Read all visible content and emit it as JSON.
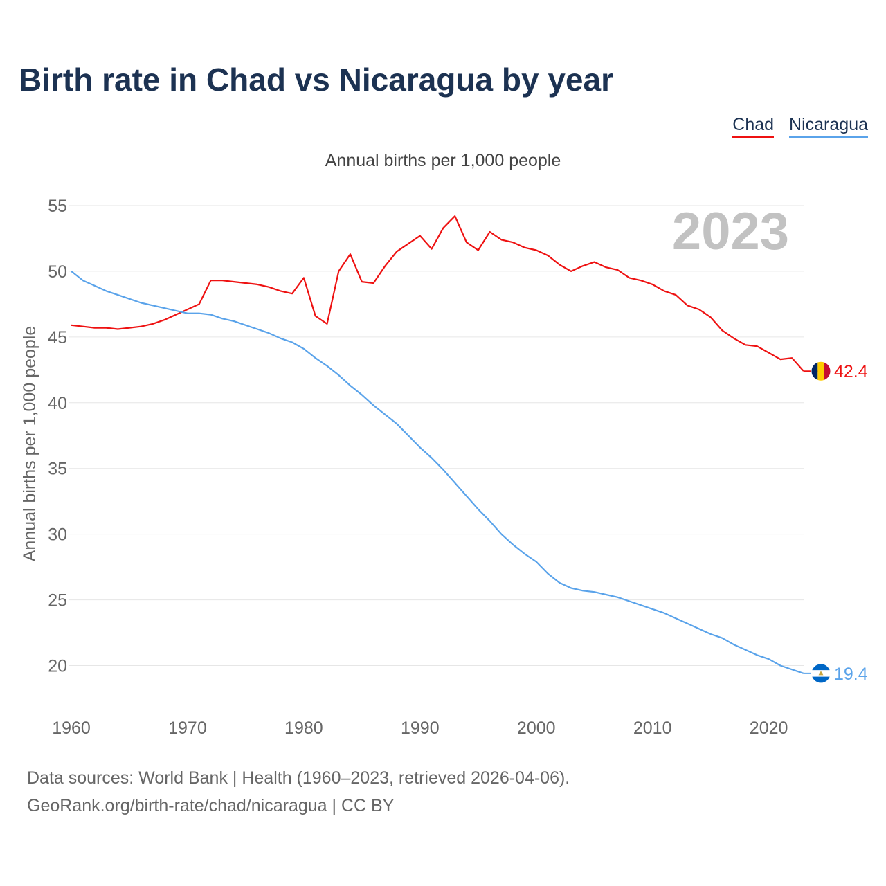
{
  "title": "Birth rate in Chad vs Nicaragua by year",
  "legend": [
    {
      "label": "Chad",
      "color": "#ee1111"
    },
    {
      "label": "Nicaragua",
      "color": "#5aa3ea"
    }
  ],
  "footer": {
    "line1": "Data sources: World Bank | Health (1960–2023, retrieved 2026-04-06).",
    "line2": "GeoRank.org/birth-rate/chad/nicaragua | CC BY"
  },
  "chart_data": {
    "type": "line",
    "title": "Annual births per 1,000 people",
    "ylabel": "Annual births per 1,000 people",
    "xlabel": "",
    "year_label": "2023",
    "xlim": [
      1960,
      2023
    ],
    "ylim": [
      16.5,
      56
    ],
    "y_ticks": [
      20,
      25,
      30,
      35,
      40,
      45,
      50,
      55
    ],
    "x_ticks": [
      1960,
      1970,
      1980,
      1990,
      2000,
      2010,
      2020
    ],
    "grid": true,
    "x": [
      1960,
      1961,
      1962,
      1963,
      1964,
      1965,
      1966,
      1967,
      1968,
      1969,
      1970,
      1971,
      1972,
      1973,
      1974,
      1975,
      1976,
      1977,
      1978,
      1979,
      1980,
      1981,
      1982,
      1983,
      1984,
      1985,
      1986,
      1987,
      1988,
      1989,
      1990,
      1991,
      1992,
      1993,
      1994,
      1995,
      1996,
      1997,
      1998,
      1999,
      2000,
      2001,
      2002,
      2003,
      2004,
      2005,
      2006,
      2007,
      2008,
      2009,
      2010,
      2011,
      2012,
      2013,
      2014,
      2015,
      2016,
      2017,
      2018,
      2019,
      2020,
      2021,
      2022,
      2023
    ],
    "series": [
      {
        "name": "Chad",
        "color": "#ee1111",
        "end_label": "42.4",
        "values": [
          45.9,
          45.8,
          45.7,
          45.7,
          45.6,
          45.7,
          45.8,
          46.0,
          46.3,
          46.7,
          47.1,
          47.5,
          49.3,
          49.3,
          49.2,
          49.1,
          49.0,
          48.8,
          48.5,
          48.3,
          49.5,
          46.6,
          46.0,
          50.0,
          51.3,
          49.2,
          49.1,
          50.4,
          51.5,
          52.1,
          52.7,
          51.7,
          53.3,
          54.2,
          52.2,
          51.6,
          53.0,
          52.4,
          52.2,
          51.8,
          51.6,
          51.2,
          50.5,
          50.0,
          50.4,
          50.7,
          50.3,
          50.1,
          49.5,
          49.3,
          49.0,
          48.5,
          48.2,
          47.4,
          47.1,
          46.5,
          45.5,
          44.9,
          44.4,
          44.3,
          43.8,
          43.3,
          43.4,
          42.4
        ]
      },
      {
        "name": "Nicaragua",
        "color": "#5aa3ea",
        "end_label": "19.4",
        "values": [
          50.0,
          49.3,
          48.9,
          48.5,
          48.2,
          47.9,
          47.6,
          47.4,
          47.2,
          47.0,
          46.8,
          46.8,
          46.7,
          46.4,
          46.2,
          45.9,
          45.6,
          45.3,
          44.9,
          44.6,
          44.1,
          43.4,
          42.8,
          42.1,
          41.3,
          40.6,
          39.8,
          39.1,
          38.4,
          37.5,
          36.6,
          35.8,
          34.9,
          33.9,
          32.9,
          31.9,
          31.0,
          30.0,
          29.2,
          28.5,
          27.9,
          27.0,
          26.3,
          25.9,
          25.7,
          25.6,
          25.4,
          25.2,
          24.9,
          24.6,
          24.3,
          24.0,
          23.6,
          23.2,
          22.8,
          22.4,
          22.1,
          21.6,
          21.2,
          20.8,
          20.5,
          20.0,
          19.7,
          19.4
        ]
      }
    ]
  }
}
